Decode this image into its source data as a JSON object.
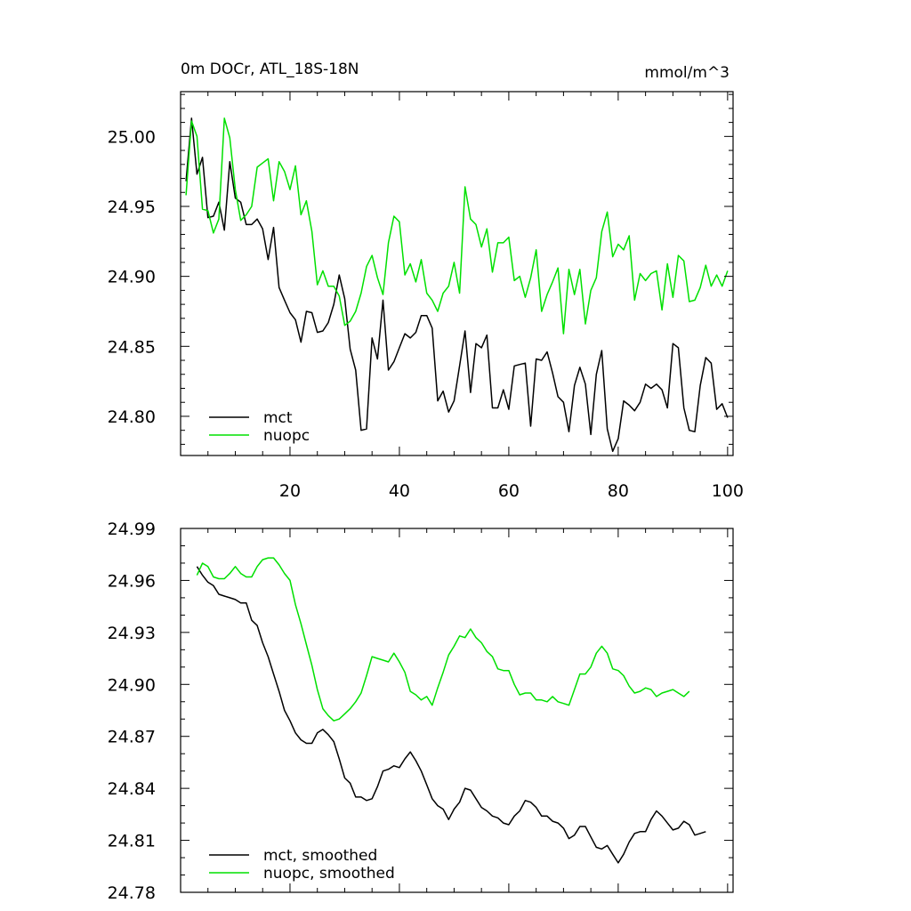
{
  "colors": {
    "mct": "#000000",
    "nuopc": "#00e000",
    "axes": "#000000",
    "background": "#ffffff"
  },
  "chart_data": [
    {
      "type": "line",
      "title": "0m DOCr, ATL_18S-18N",
      "units": "mmol/m^3",
      "xlabel": "",
      "ylabel": "",
      "xlim": [
        0,
        101
      ],
      "ylim": [
        24.772,
        25.032
      ],
      "x_ticks": [
        20,
        40,
        60,
        80,
        100
      ],
      "x_tick_labels": [
        "20",
        "40",
        "60",
        "80",
        "100"
      ],
      "y_ticks": [
        24.8,
        24.85,
        24.9,
        24.95,
        25.0
      ],
      "y_tick_labels": [
        "24.80",
        "24.85",
        "24.90",
        "24.95",
        "25.00"
      ],
      "legend_position": "bottom-left",
      "x_start": 1,
      "series": [
        {
          "name": "mct",
          "color": "#000000",
          "values": [
            24.968,
            25.013,
            24.973,
            24.985,
            24.942,
            24.943,
            24.953,
            24.933,
            24.982,
            24.956,
            24.953,
            24.937,
            24.937,
            24.941,
            24.934,
            24.912,
            24.935,
            24.892,
            24.883,
            24.874,
            24.869,
            24.853,
            24.875,
            24.874,
            24.86,
            24.861,
            24.867,
            24.88,
            24.901,
            24.884,
            24.848,
            24.833,
            24.79,
            24.791,
            24.856,
            24.841,
            24.883,
            24.833,
            24.839,
            24.849,
            24.859,
            24.856,
            24.86,
            24.872,
            24.872,
            24.863,
            24.811,
            24.818,
            24.803,
            24.811,
            24.836,
            24.861,
            24.817,
            24.852,
            24.849,
            24.858,
            24.806,
            24.806,
            24.819,
            24.805,
            24.836,
            24.837,
            24.838,
            24.793,
            24.841,
            24.84,
            24.846,
            24.831,
            24.814,
            24.81,
            24.789,
            24.822,
            24.835,
            24.823,
            24.787,
            24.83,
            24.847,
            24.791,
            24.775,
            24.784,
            24.811,
            24.808,
            24.804,
            24.81,
            24.823,
            24.82,
            24.823,
            24.819,
            24.806,
            24.852,
            24.849,
            24.806,
            24.79,
            24.789,
            24.822,
            24.842,
            24.838,
            24.805,
            24.809,
            24.799
          ]
        },
        {
          "name": "nuopc",
          "color": "#00e000",
          "values": [
            24.958,
            25.011,
            25.0,
            24.948,
            24.947,
            24.931,
            24.941,
            25.013,
            24.999,
            24.962,
            24.94,
            24.944,
            24.95,
            24.978,
            24.981,
            24.984,
            24.954,
            24.982,
            24.975,
            24.962,
            24.979,
            24.944,
            24.954,
            24.932,
            24.894,
            24.904,
            24.893,
            24.893,
            24.886,
            24.865,
            24.868,
            24.875,
            24.888,
            24.907,
            24.915,
            24.899,
            24.887,
            24.924,
            24.943,
            24.939,
            24.901,
            24.909,
            24.896,
            24.912,
            24.888,
            24.883,
            24.875,
            24.888,
            24.893,
            24.91,
            24.888,
            24.964,
            24.941,
            24.937,
            24.921,
            24.934,
            24.903,
            24.924,
            24.924,
            24.928,
            24.897,
            24.9,
            24.885,
            24.899,
            24.919,
            24.875,
            24.887,
            24.896,
            24.906,
            24.859,
            24.905,
            24.887,
            24.905,
            24.866,
            24.89,
            24.899,
            24.932,
            24.946,
            24.914,
            24.923,
            24.919,
            24.929,
            24.883,
            24.902,
            24.897,
            24.902,
            24.904,
            24.876,
            24.909,
            24.885,
            24.915,
            24.911,
            24.882,
            24.883,
            24.892,
            24.908,
            24.893,
            24.901,
            24.893,
            24.904
          ]
        }
      ],
      "legend": [
        "mct",
        "nuopc"
      ]
    },
    {
      "type": "line",
      "title": "",
      "xlabel": "",
      "ylabel": "",
      "xlim": [
        0,
        101
      ],
      "ylim": [
        24.78,
        24.99
      ],
      "x_ticks": [
        20,
        40,
        60,
        80,
        100
      ],
      "x_tick_labels": [],
      "y_ticks": [
        24.78,
        24.81,
        24.84,
        24.87,
        24.9,
        24.93,
        24.96,
        24.99
      ],
      "y_tick_labels": [
        "24.78",
        "24.81",
        "24.84",
        "24.87",
        "24.90",
        "24.93",
        "24.96",
        "24.99"
      ],
      "legend_position": "bottom-left",
      "x_start": 3,
      "series": [
        {
          "name": "mct, smoothed",
          "color": "#000000",
          "values": [
            24.968,
            24.963,
            24.959,
            24.957,
            24.952,
            24.951,
            24.95,
            24.949,
            24.947,
            24.947,
            24.937,
            24.934,
            24.924,
            24.916,
            24.906,
            24.896,
            24.885,
            24.879,
            24.872,
            24.868,
            24.866,
            24.866,
            24.872,
            24.874,
            24.871,
            24.867,
            24.857,
            24.846,
            24.843,
            24.835,
            24.835,
            24.833,
            24.834,
            24.841,
            24.85,
            24.851,
            24.853,
            24.852,
            24.857,
            24.861,
            24.856,
            24.85,
            24.842,
            24.834,
            24.83,
            24.828,
            24.822,
            24.828,
            24.832,
            24.84,
            24.839,
            24.834,
            24.829,
            24.827,
            24.824,
            24.823,
            24.82,
            24.819,
            24.824,
            24.827,
            24.833,
            24.832,
            24.829,
            24.824,
            24.824,
            24.821,
            24.82,
            24.817,
            24.811,
            24.813,
            24.818,
            24.818,
            24.812,
            24.806,
            24.805,
            24.807,
            24.802,
            24.797,
            24.802,
            24.809,
            24.814,
            24.815,
            24.815,
            24.822,
            24.827,
            24.824,
            24.82,
            24.816,
            24.817,
            24.821,
            24.819,
            24.813,
            24.814,
            24.815
          ]
        },
        {
          "name": "nuopc, smoothed",
          "color": "#00e000",
          "values": [
            24.963,
            24.97,
            24.968,
            24.962,
            24.961,
            24.961,
            24.964,
            24.968,
            24.964,
            24.962,
            24.962,
            24.968,
            24.972,
            24.973,
            24.973,
            24.969,
            24.964,
            24.96,
            24.946,
            24.935,
            24.923,
            24.911,
            24.897,
            24.886,
            24.882,
            24.879,
            24.88,
            24.883,
            24.886,
            24.89,
            24.895,
            24.905,
            24.916,
            24.915,
            24.914,
            24.913,
            24.918,
            24.913,
            24.907,
            24.896,
            24.894,
            24.891,
            24.893,
            24.888,
            24.898,
            24.907,
            24.917,
            24.922,
            24.928,
            24.927,
            24.932,
            24.927,
            24.924,
            24.919,
            24.916,
            24.909,
            24.908,
            24.908,
            24.9,
            24.894,
            24.895,
            24.895,
            24.891,
            24.891,
            24.89,
            24.893,
            24.89,
            24.889,
            24.888,
            24.897,
            24.906,
            24.906,
            24.91,
            24.918,
            24.922,
            24.918,
            24.909,
            24.908,
            24.905,
            24.899,
            24.895,
            24.896,
            24.898,
            24.897,
            24.893,
            24.895,
            24.896,
            24.897,
            24.895,
            24.893,
            24.896
          ]
        }
      ],
      "legend": [
        "mct, smoothed",
        "nuopc, smoothed"
      ]
    }
  ]
}
